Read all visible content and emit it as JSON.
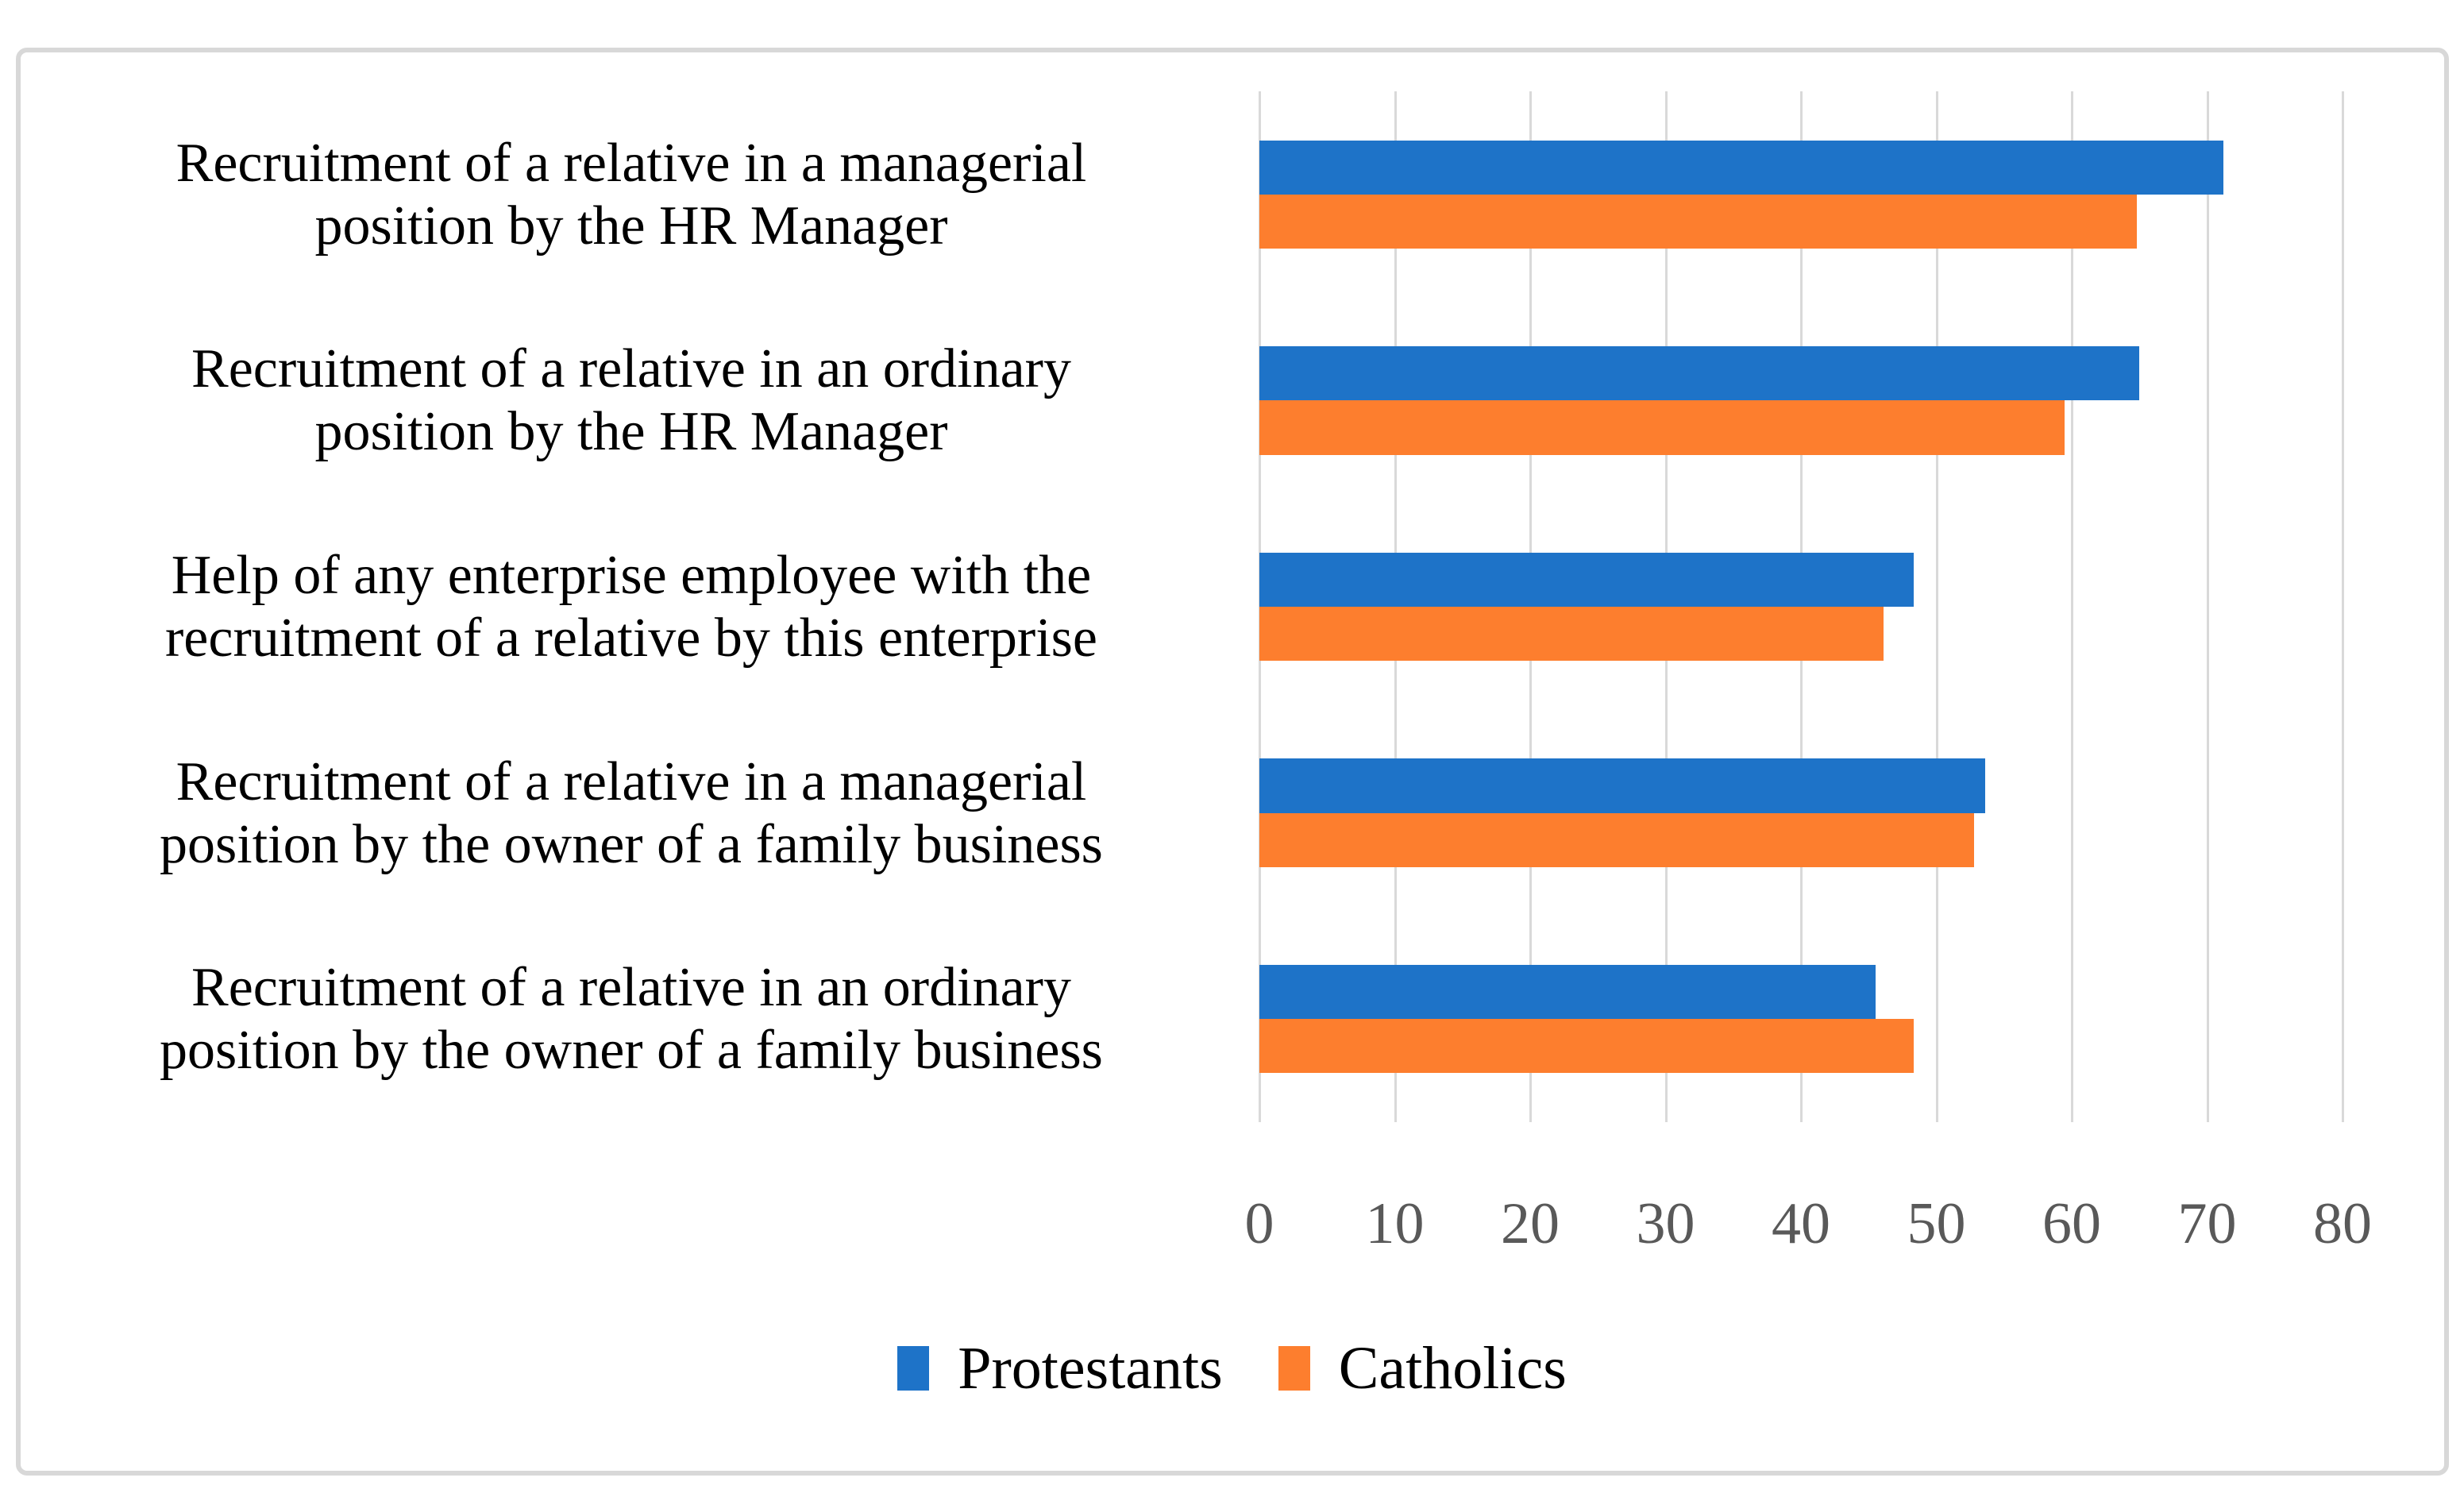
{
  "page": {
    "background": "#ffffff",
    "border_color": "#d8d8d8"
  },
  "chart_data": {
    "type": "bar",
    "orientation": "horizontal",
    "title": "",
    "xlabel": "",
    "ylabel": "",
    "grid": true,
    "gridline_color": "#d9d9d9",
    "legend_position": "bottom",
    "x_axis": {
      "min": 0,
      "max": 80,
      "tick_interval": 10,
      "tick_labels": [
        "0",
        "10",
        "20",
        "30",
        "40",
        "50",
        "60",
        "70",
        "80"
      ],
      "tick_color": "#595959"
    },
    "categories": [
      {
        "line1": "Recruitment of a relative in a managerial",
        "line2": "position by the HR Manager"
      },
      {
        "line1": "Recruitment of a relative in an ordinary",
        "line2": "position by the HR Manager"
      },
      {
        "line1": "Help of any enterprise employee with the",
        "line2": "recruitment of a relative by this enterprise"
      },
      {
        "line1": "Recruitment of a relative in a managerial",
        "line2": "position by the owner of a family business"
      },
      {
        "line1": "Recruitment of a relative in an ordinary",
        "line2": "position by the owner of a family business"
      }
    ],
    "series": [
      {
        "name": "Protestants",
        "color": "#1e73c8",
        "values": [
          71.2,
          65.0,
          48.3,
          53.6,
          45.5
        ]
      },
      {
        "name": "Catholics",
        "color": "#fd7e2e",
        "values": [
          64.8,
          59.5,
          46.1,
          52.8,
          48.3
        ]
      }
    ],
    "legend": [
      {
        "label": "Protestants",
        "color": "#1e73c8"
      },
      {
        "label": "Catholics",
        "color": "#fd7e2e"
      }
    ]
  }
}
